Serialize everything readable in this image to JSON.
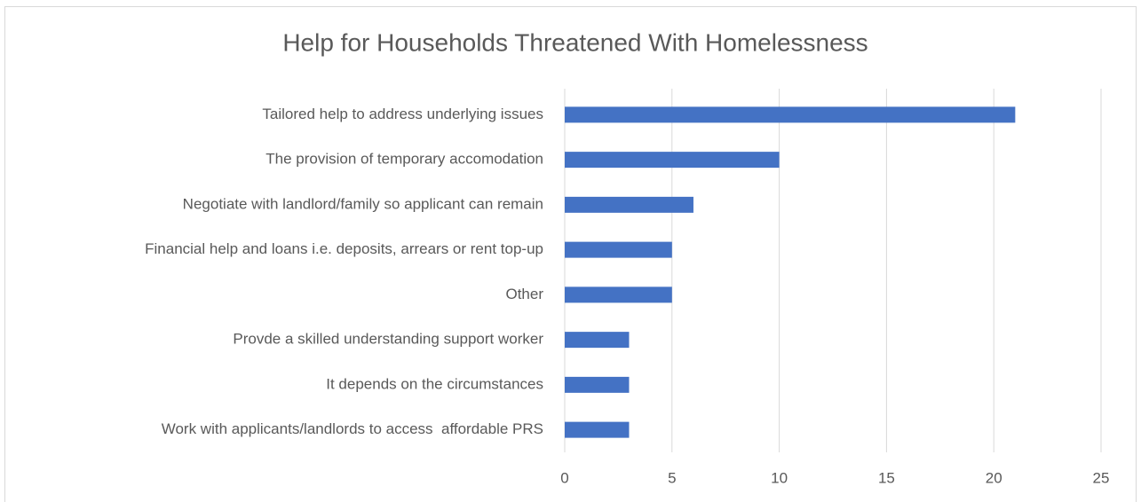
{
  "chart_data": {
    "type": "bar",
    "orientation": "horizontal",
    "title": "Help for Households Threatened With Homelessness",
    "categories": [
      "Tailored help to address underlying issues",
      "The provision of temporary accomodation",
      "Negotiate with landlord/family so applicant can remain",
      "Financial help and loans i.e. deposits, arrears or rent top-up",
      "Other",
      "Provde a skilled understanding support worker",
      "It depends on the circumstances",
      "Work with applicants/landlords to access  affordable PRS"
    ],
    "values": [
      21,
      10,
      6,
      5,
      5,
      3,
      3,
      3
    ],
    "color": "#4472c4",
    "xlim": [
      0,
      25
    ],
    "xticks": [
      0,
      5,
      10,
      15,
      20,
      25
    ],
    "grid": true
  }
}
